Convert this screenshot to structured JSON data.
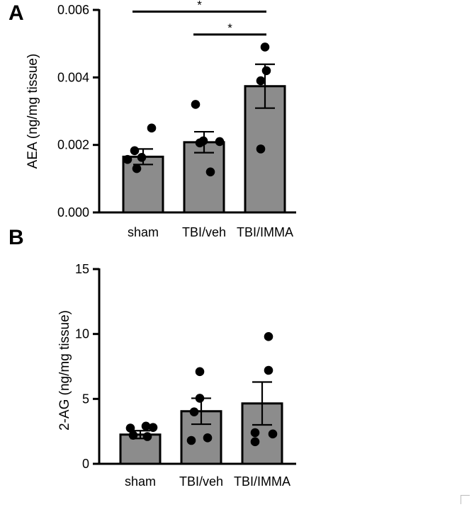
{
  "chart_data": [
    {
      "panel_label": "A",
      "type": "bar",
      "ylabel": "AEA (ng/mg tissue)",
      "xlabel": "",
      "title": "",
      "categories": [
        "sham",
        "TBI/veh",
        "TBI/IMMA"
      ],
      "ylim": [
        0,
        0.006
      ],
      "yticks": [
        0,
        0.002,
        0.004,
        0.006
      ],
      "ytick_labels": [
        "0.000",
        "0.002",
        "0.004",
        "0.006"
      ],
      "series": [
        {
          "values": [
            0.00165,
            0.00208,
            0.00374
          ],
          "sem": [
            0.00023,
            0.00031,
            0.00065
          ],
          "points": [
            [
              0.0025,
              0.00183,
              0.00163,
              0.00157,
              0.0013
            ],
            [
              0.0032,
              0.00212,
              0.0021,
              0.00206,
              0.0012
            ],
            [
              0.0049,
              0.0042,
              0.0039,
              0.00188
            ]
          ]
        }
      ],
      "significance": [
        {
          "from": 0,
          "to": 2,
          "y": 0.00595,
          "label": "*"
        },
        {
          "from": 1,
          "to": 2,
          "y": 0.00527,
          "label": "*"
        }
      ],
      "bar_color": "#8c8c8c",
      "grid": false
    },
    {
      "panel_label": "B",
      "type": "bar",
      "ylabel": "2-AG (ng/mg tissue)",
      "xlabel": "",
      "title": "",
      "categories": [
        "sham",
        "TBI/veh",
        "TBI/IMMA"
      ],
      "ylim": [
        0,
        15
      ],
      "yticks": [
        0,
        5,
        10,
        15
      ],
      "ytick_labels": [
        "0",
        "5",
        "10",
        "15"
      ],
      "series": [
        {
          "values": [
            2.25,
            4.05,
            4.65
          ],
          "sem": [
            0.3,
            1.0,
            1.65
          ],
          "points": [
            [
              2.9,
              2.8,
              2.75,
              2.2,
              2.1
            ],
            [
              7.1,
              5.05,
              4.0,
              2.0,
              1.8
            ],
            [
              9.8,
              7.2,
              2.4,
              2.3,
              1.7
            ]
          ]
        }
      ],
      "significance": [],
      "bar_color": "#8c8c8c",
      "grid": false
    }
  ]
}
